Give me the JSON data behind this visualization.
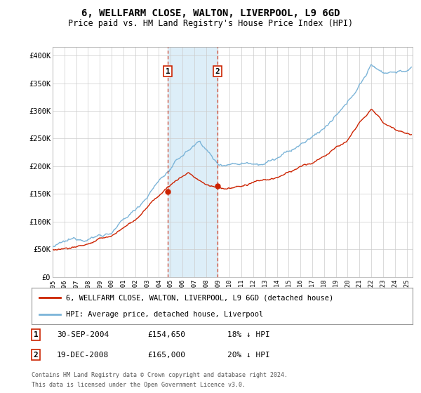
{
  "title": "6, WELLFARM CLOSE, WALTON, LIVERPOOL, L9 6GD",
  "subtitle": "Price paid vs. HM Land Registry's House Price Index (HPI)",
  "title_fontsize": 10,
  "subtitle_fontsize": 8.5,
  "ylabel_ticks": [
    "£0",
    "£50K",
    "£100K",
    "£150K",
    "£200K",
    "£250K",
    "£300K",
    "£350K",
    "£400K"
  ],
  "ytick_values": [
    0,
    50000,
    100000,
    150000,
    200000,
    250000,
    300000,
    350000,
    400000
  ],
  "ylim": [
    0,
    415000
  ],
  "xlim_start": 1995.0,
  "xlim_end": 2025.5,
  "hpi_color": "#7bb4d8",
  "price_color": "#cc2200",
  "marker1_date": 2004.75,
  "marker2_date": 2008.96,
  "marker1_label": "1",
  "marker2_label": "2",
  "marker1_price": 154650,
  "marker2_price": 165000,
  "shade_color": "#ddeef8",
  "transaction1": {
    "date": "30-SEP-2004",
    "price": "£154,650",
    "note": "18% ↓ HPI"
  },
  "transaction2": {
    "date": "19-DEC-2008",
    "price": "£165,000",
    "note": "20% ↓ HPI"
  },
  "legend_line1": "6, WELLFARM CLOSE, WALTON, LIVERPOOL, L9 6GD (detached house)",
  "legend_line2": "HPI: Average price, detached house, Liverpool",
  "footer1": "Contains HM Land Registry data © Crown copyright and database right 2024.",
  "footer2": "This data is licensed under the Open Government Licence v3.0.",
  "background_color": "#ffffff",
  "grid_color": "#cccccc"
}
